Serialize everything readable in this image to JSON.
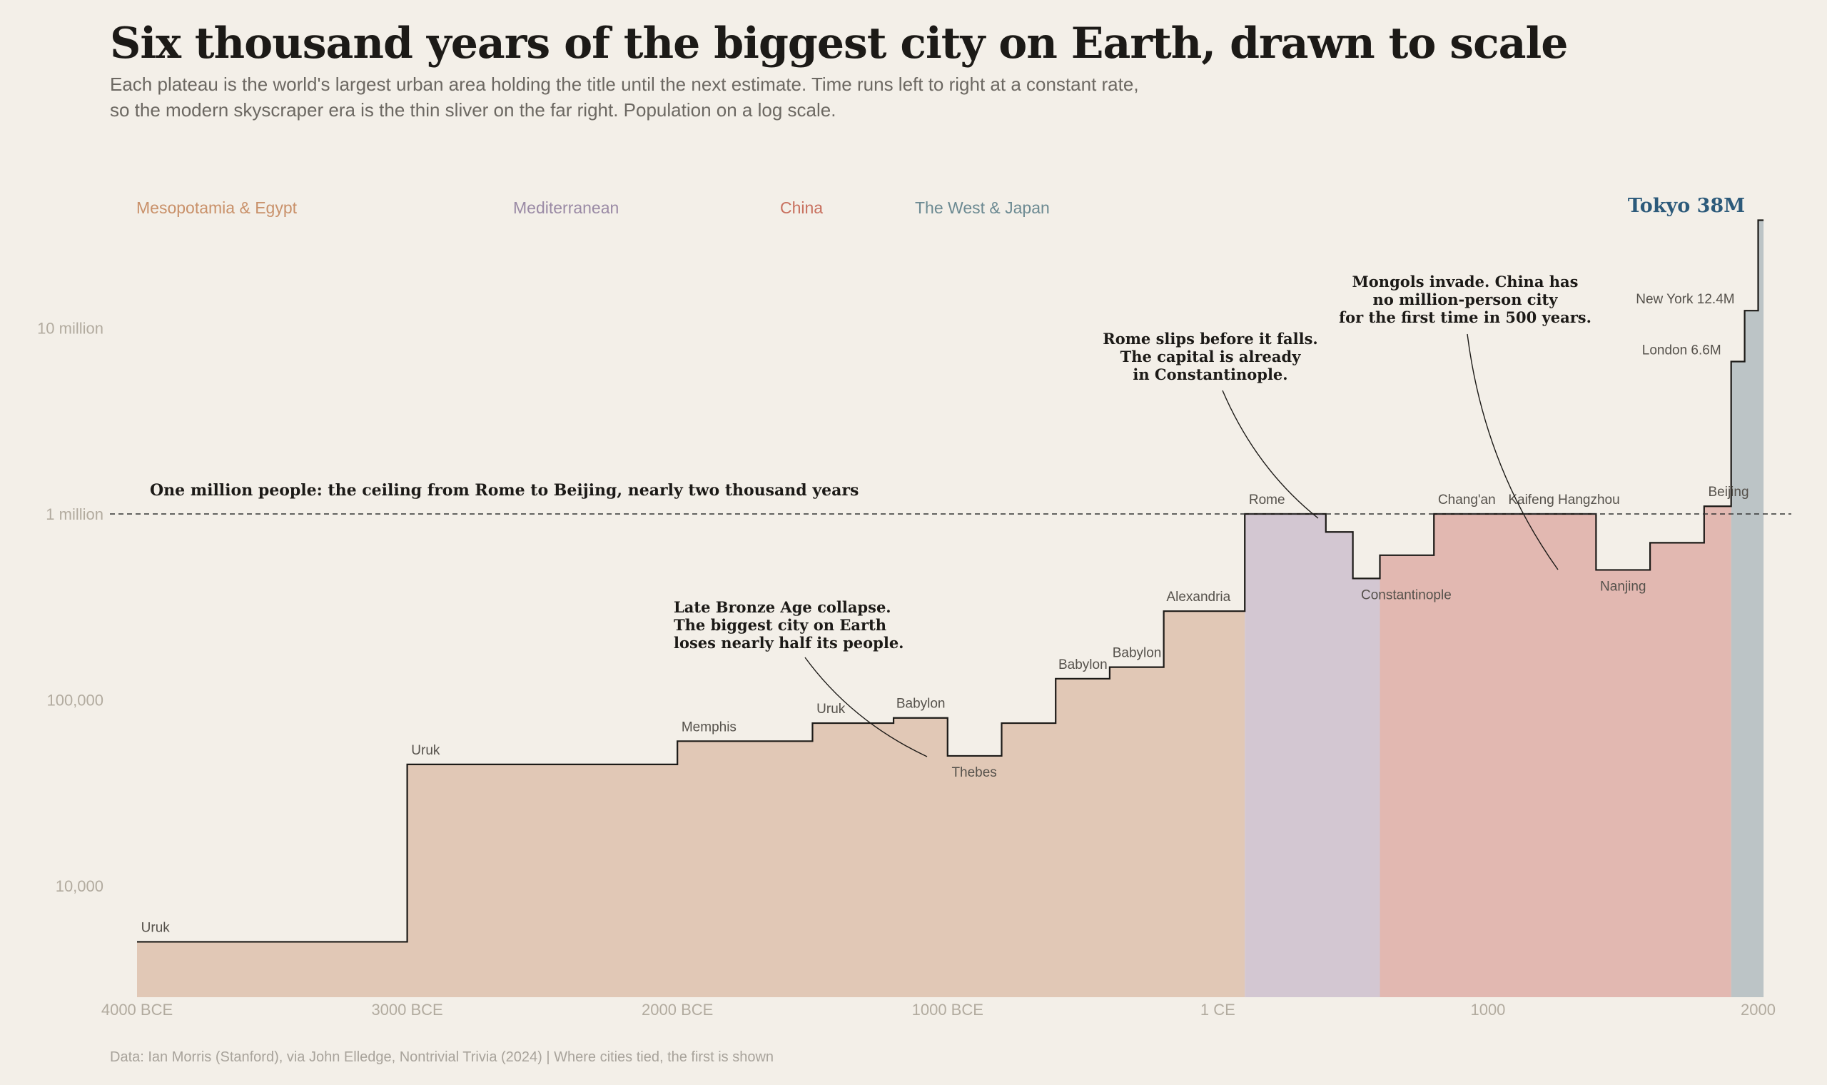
{
  "title": "Six thousand years of the biggest city on Earth, drawn to scale",
  "subtitle_line1": "Each plateau is the world's largest urban area holding the title until the next estimate. Time runs left to right at a constant rate,",
  "subtitle_line2": "so the modern skyscraper era is the thin sliver on the far right. Population on a log scale.",
  "source": "Data: Ian Morris (Stanford), via John Elledge, Nontrivial Trivia (2024)  |  Where cities tied, the first is shown",
  "colors": {
    "background": "#f3efe8",
    "Mesopotamia & Egypt": "#e1c8b6",
    "Mediterranean": "#d3c7d2",
    "China": "#e2b8b1",
    "The West & Japan": "#bcc4c6",
    "step_line": "#1c1a17",
    "tokyo_label": "#2c5a7a"
  },
  "chart_data": {
    "type": "area",
    "x_scale": "linear (years; negative = BCE)",
    "y_scale": "log",
    "xlim": [
      -4000,
      2025
    ],
    "ylim": [
      2500,
      60000000
    ],
    "x_ticks": [
      {
        "value": -4000,
        "label": "4000 BCE"
      },
      {
        "value": -3000,
        "label": "3000 BCE"
      },
      {
        "value": -2000,
        "label": "2000 BCE"
      },
      {
        "value": -1000,
        "label": "1000 BCE"
      },
      {
        "value": 0,
        "label": "1 CE"
      },
      {
        "value": 1000,
        "label": "1000"
      },
      {
        "value": 2000,
        "label": "2000"
      }
    ],
    "y_ticks": [
      {
        "value": 10000,
        "label": "10,000"
      },
      {
        "value": 100000,
        "label": "100,000"
      },
      {
        "value": 1000000,
        "label": "1 million"
      },
      {
        "value": 10000000,
        "label": "10 million"
      }
    ],
    "legend": [
      {
        "name": "Mesopotamia & Egypt",
        "color": "#c9916a"
      },
      {
        "name": "Mediterranean",
        "color": "#9a8aa5"
      },
      {
        "name": "China",
        "color": "#c8705e"
      },
      {
        "name": "The West & Japan",
        "color": "#6c8a92"
      }
    ],
    "regions": [
      {
        "name": "Mesopotamia & Egypt",
        "start": -4000,
        "end": 100
      },
      {
        "name": "Mediterranean",
        "start": 100,
        "end": 600
      },
      {
        "name": "China",
        "start": 600,
        "end": 1900
      },
      {
        "name": "The West & Japan",
        "start": 1900,
        "end": 2020
      }
    ],
    "steps": [
      {
        "start": -4000,
        "end": -3000,
        "population": 5000,
        "city": "Uruk"
      },
      {
        "start": -3000,
        "end": -2000,
        "population": 45000,
        "city": "Uruk"
      },
      {
        "start": -2000,
        "end": -1500,
        "population": 60000,
        "city": "Memphis"
      },
      {
        "start": -1500,
        "end": -1200,
        "population": 75000,
        "city": "Uruk"
      },
      {
        "start": -1200,
        "end": -1000,
        "population": 80000,
        "city": "Babylon"
      },
      {
        "start": -1000,
        "end": -800,
        "population": 50000,
        "city": "Thebes"
      },
      {
        "start": -800,
        "end": -600,
        "population": 75000,
        "city": ""
      },
      {
        "start": -600,
        "end": -400,
        "population": 130000,
        "city": "Babylon"
      },
      {
        "start": -400,
        "end": -200,
        "population": 150000,
        "city": "Babylon"
      },
      {
        "start": -200,
        "end": 100,
        "population": 300000,
        "city": "Alexandria"
      },
      {
        "start": 100,
        "end": 400,
        "population": 1000000,
        "city": "Rome"
      },
      {
        "start": 400,
        "end": 500,
        "population": 800000,
        "city": ""
      },
      {
        "start": 500,
        "end": 600,
        "population": 450000,
        "city": "Constantinople"
      },
      {
        "start": 600,
        "end": 800,
        "population": 600000,
        "city": ""
      },
      {
        "start": 800,
        "end": 1000,
        "population": 1000000,
        "city": "Chang'an"
      },
      {
        "start": 1000,
        "end": 1200,
        "population": 1000000,
        "city": "Kaifeng"
      },
      {
        "start": 1200,
        "end": 1400,
        "population": 1000000,
        "city": "Hangzhou"
      },
      {
        "start": 1400,
        "end": 1600,
        "population": 500000,
        "city": "Nanjing"
      },
      {
        "start": 1600,
        "end": 1800,
        "population": 700000,
        "city": ""
      },
      {
        "start": 1800,
        "end": 1900,
        "population": 1100000,
        "city": "Beijing"
      },
      {
        "start": 1900,
        "end": 1950,
        "population": 6600000,
        "city": "London"
      },
      {
        "start": 1950,
        "end": 2000,
        "population": 12400000,
        "city": "New York"
      },
      {
        "start": 2000,
        "end": 2020,
        "population": 38000000,
        "city": "Tokyo"
      }
    ],
    "city_labels": [
      {
        "text": "Uruk",
        "x": -3985,
        "y": 5000
      },
      {
        "text": "Uruk",
        "x": -2985,
        "y": 45000
      },
      {
        "text": "Memphis",
        "x": -1985,
        "y": 60000
      },
      {
        "text": "Uruk",
        "x": -1485,
        "y": 75000
      },
      {
        "text": "Babylon",
        "x": -1190,
        "y": 80000
      },
      {
        "text": "Babylon",
        "x": -590,
        "y": 130000
      },
      {
        "text": "Babylon",
        "x": -390,
        "y": 150000
      },
      {
        "text": "Alexandria",
        "x": -190,
        "y": 300000
      },
      {
        "text": "Rome",
        "x": 115,
        "y": 1000000
      },
      {
        "text": "Chang'an",
        "x": 815,
        "y": 1000000
      },
      {
        "text": "Kaifeng Hangzhou",
        "x": 1075,
        "y": 1000000
      },
      {
        "text": "Beijing",
        "x": 1815,
        "y": 1100000
      }
    ],
    "city_labels_below": [
      {
        "text": "Thebes",
        "x": -985,
        "y": 50000
      },
      {
        "text": "Constantinople",
        "x": 530,
        "y": 450000
      },
      {
        "text": "Nanjing",
        "x": 1415,
        "y": 500000
      }
    ],
    "right_labels": [
      {
        "text": "New York 12.4M",
        "x": 1950,
        "y": 12400000
      },
      {
        "text": "London 6.6M",
        "x": 1900,
        "y": 6600000
      }
    ],
    "headline_label": {
      "text": "Tokyo 38M",
      "x": 2020,
      "y": 38000000
    },
    "reference_line": {
      "y": 1000000,
      "label": "One million people: the ceiling from Rome to Beijing, nearly two thousand years"
    },
    "annotations": [
      {
        "lines": [
          "Late Bronze Age collapse.",
          "The biggest city on Earth",
          "loses nearly half its people."
        ],
        "target_x": -1000,
        "target_y": 52000
      },
      {
        "lines": [
          "Rome slips before it falls.",
          "The capital is already",
          "in Constantinople."
        ],
        "target_x": 400,
        "target_y": 1000000
      },
      {
        "lines": [
          "Mongols invade. China has",
          "no million-person city",
          "for the first time in 500 years."
        ],
        "target_x": 1300,
        "target_y": 620000
      }
    ]
  }
}
